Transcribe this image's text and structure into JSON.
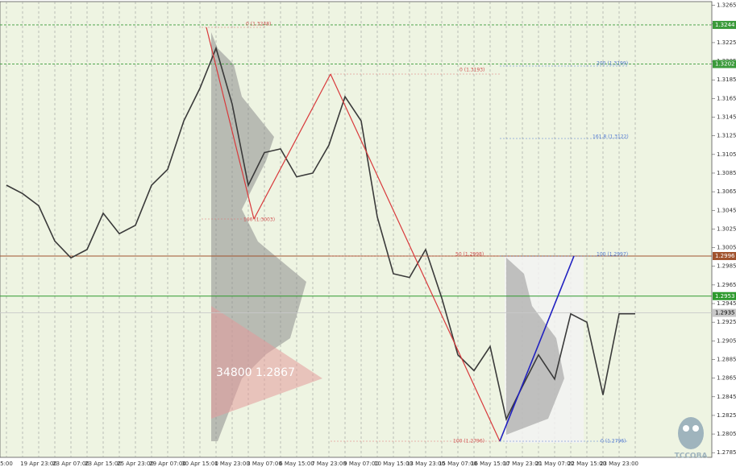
{
  "chart_data": {
    "type": "line",
    "categories": [
      "5:00",
      null,
      "19 Apr 23:00",
      null,
      "23 Apr 07:00",
      null,
      "23 Apr 15:00",
      null,
      "25 Apr 23:00",
      null,
      "29 Apr 07:00",
      null,
      "30 Apr 15:00",
      null,
      "1 May 23:00",
      null,
      "3 May 07:00",
      null,
      "6 May 15:00",
      null,
      "7 May 23:00",
      null,
      "9 May 07:00",
      null,
      "10 May 15:00",
      null,
      "13 May 23:00",
      null,
      "15 May 07:00",
      null,
      "16 May 15:00",
      null,
      "17 May 23:00",
      null,
      "21 May 07:00",
      null,
      "22 May 15:00",
      null,
      "23 May 23:00",
      null
    ],
    "values": [
      1.3072,
      1.3063,
      1.305,
      1.3012,
      1.2994,
      1.3003,
      1.3042,
      1.302,
      1.3029,
      1.3072,
      1.3089,
      1.3141,
      1.3176,
      1.3219,
      1.3159,
      1.3072,
      1.3107,
      1.3111,
      1.3081,
      1.3085,
      1.3115,
      1.3167,
      1.3141,
      1.3038,
      1.2977,
      1.2973,
      1.3003,
      1.2951,
      1.289,
      1.2873,
      1.2899,
      1.2821,
      1.2856,
      1.289,
      1.2864,
      1.2934,
      1.2925,
      1.2847,
      1.2934,
      1.2934
    ],
    "color": "#3a3a3a",
    "ylim": [
      1.278,
      1.3269
    ],
    "yticks": [
      1.2785,
      1.2805,
      1.2825,
      1.2845,
      1.2865,
      1.2885,
      1.2905,
      1.2925,
      1.2945,
      1.2965,
      1.2985,
      1.3005,
      1.3025,
      1.3045,
      1.3065,
      1.3085,
      1.3105,
      1.3125,
      1.3145,
      1.3165,
      1.3185,
      1.3205,
      1.3225,
      1.3245,
      1.3265
    ],
    "grid": true,
    "levels": [
      {
        "value": 1.3244,
        "color": "#3a9a3a",
        "dashed": true
      },
      {
        "value": 1.3202,
        "color": "#3a9a3a",
        "dashed": true
      },
      {
        "value": 1.2996,
        "color": "#a0522d",
        "dashed": false
      },
      {
        "value": 1.2953,
        "color": "#2e9a2e",
        "dashed": false
      },
      {
        "value": 1.2935,
        "color": "#c8c8c8",
        "dashed": false
      }
    ],
    "annotations": [
      "0 (1.3248)",
      "100 (1.3003)",
      "0 (1.3193)",
      "50 (1.2998)",
      "100 (1.2796)",
      "200 (1.3199)",
      "161.8 (1.3122)",
      "100 (1.2997)",
      "0 (1.2796)",
      "34800  1.2867"
    ],
    "logo": "TCCOBA"
  }
}
